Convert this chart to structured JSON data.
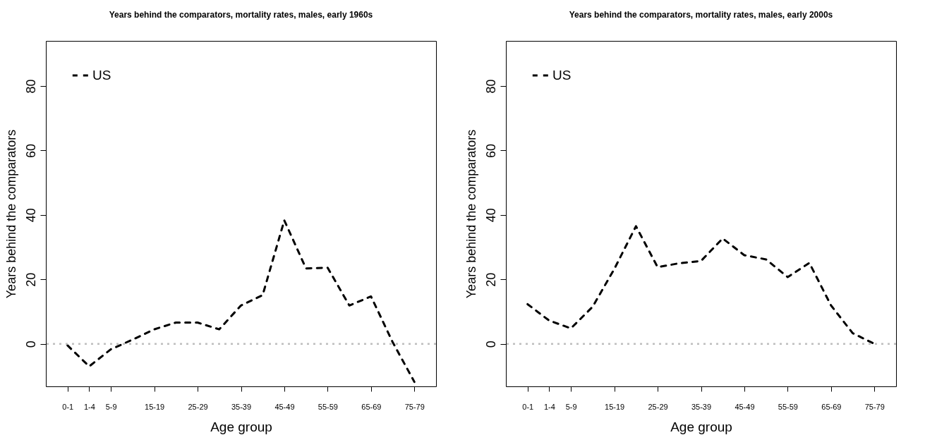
{
  "chart_data": [
    {
      "type": "line",
      "title": "Years behind the comparators, mortality rates, males, early 1960s",
      "xlabel": "Age group",
      "ylabel": "Years behind the comparators",
      "categories": [
        "0-1",
        "1-4",
        "5-9",
        null,
        "15-19",
        null,
        "25-29",
        null,
        "35-39",
        null,
        "45-49",
        null,
        "55-59",
        null,
        "65-69",
        null,
        "75-79"
      ],
      "series": [
        {
          "name": "US",
          "color": "#000000",
          "values": [
            -0.5,
            -7,
            -1.7,
            1.3,
            4.5,
            6.6,
            6.6,
            4.5,
            11.9,
            15.1,
            38.3,
            23.4,
            23.6,
            11.9,
            14.7,
            0.5,
            -11.8
          ]
        }
      ],
      "ylim": [
        -13.2,
        94
      ],
      "yticks": [
        0,
        20,
        40,
        60,
        80
      ],
      "line_style": "dashed",
      "legend": "top left",
      "ref_lines": [
        {
          "axis": "y",
          "value": 0,
          "color": "#bebebe",
          "line_style": "dotted"
        }
      ]
    },
    {
      "type": "line",
      "title": "Years behind the comparators, mortality rates, males, early 2000s",
      "xlabel": "Age group",
      "ylabel": "Years behind the comparators",
      "categories": [
        "0-1",
        "1-4",
        "5-9",
        null,
        "15-19",
        null,
        "25-29",
        null,
        "35-39",
        null,
        "45-49",
        null,
        "55-59",
        null,
        "65-69",
        null,
        "75-79"
      ],
      "series": [
        {
          "name": "US",
          "color": "#000000",
          "values": [
            12.3,
            7.2,
            4.8,
            11.5,
            23.2,
            36.5,
            23.8,
            25.0,
            25.7,
            32.7,
            27.5,
            26.2,
            20.7,
            25.1,
            11.9,
            3.3,
            0
          ]
        }
      ],
      "ylim": [
        -13.2,
        94
      ],
      "yticks": [
        0,
        20,
        40,
        60,
        80
      ],
      "line_style": "dashed",
      "legend": "top left",
      "ref_lines": [
        {
          "axis": "y",
          "value": 0,
          "color": "#bebebe",
          "line_style": "dotted"
        }
      ]
    }
  ]
}
